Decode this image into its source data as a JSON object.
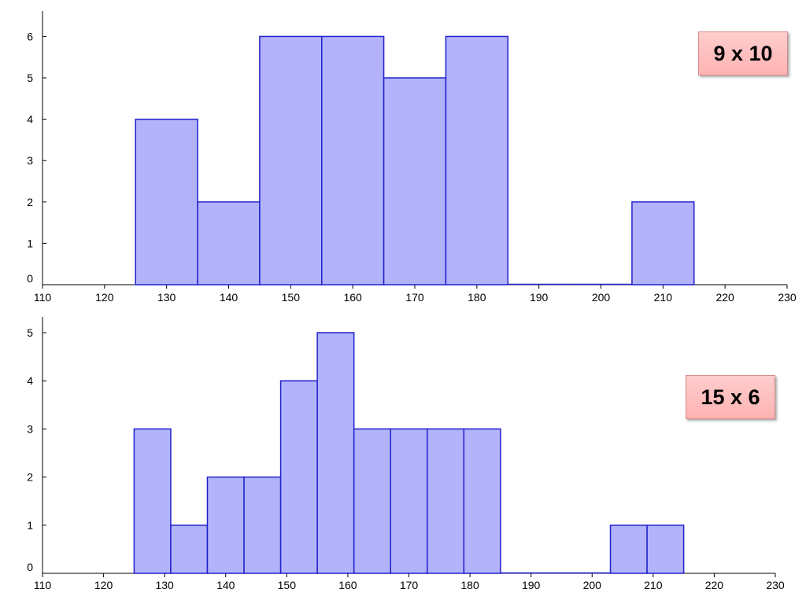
{
  "chart_data": [
    {
      "type": "bar",
      "histogram": true,
      "bin_width": 10,
      "x_ticks": [
        110,
        120,
        130,
        140,
        150,
        160,
        170,
        180,
        190,
        200,
        210,
        220,
        230
      ],
      "y_ticks": [
        0,
        1,
        2,
        3,
        4,
        5,
        6
      ],
      "xlim": [
        110,
        230
      ],
      "ylim": [
        0,
        6
      ],
      "bins": [
        {
          "start": 125,
          "end": 135,
          "count": 4
        },
        {
          "start": 135,
          "end": 145,
          "count": 2
        },
        {
          "start": 145,
          "end": 155,
          "count": 6
        },
        {
          "start": 155,
          "end": 165,
          "count": 6
        },
        {
          "start": 165,
          "end": 175,
          "count": 5
        },
        {
          "start": 175,
          "end": 185,
          "count": 6
        },
        {
          "start": 185,
          "end": 195,
          "count": 0
        },
        {
          "start": 195,
          "end": 205,
          "count": 0
        },
        {
          "start": 205,
          "end": 215,
          "count": 2
        }
      ],
      "label": "9 x 10",
      "colors": {
        "fill": "#b3b3fb",
        "stroke": "#2020cc"
      }
    },
    {
      "type": "bar",
      "histogram": true,
      "bin_width": 6,
      "x_ticks": [
        110,
        120,
        130,
        140,
        150,
        160,
        170,
        180,
        190,
        200,
        210,
        220,
        230
      ],
      "y_ticks": [
        0,
        1,
        2,
        3,
        4,
        5
      ],
      "xlim": [
        110,
        230
      ],
      "ylim": [
        0,
        5
      ],
      "bins": [
        {
          "start": 125,
          "end": 131,
          "count": 3
        },
        {
          "start": 131,
          "end": 137,
          "count": 1
        },
        {
          "start": 137,
          "end": 143,
          "count": 2
        },
        {
          "start": 143,
          "end": 149,
          "count": 2
        },
        {
          "start": 149,
          "end": 155,
          "count": 4
        },
        {
          "start": 155,
          "end": 161,
          "count": 5
        },
        {
          "start": 161,
          "end": 167,
          "count": 3
        },
        {
          "start": 167,
          "end": 173,
          "count": 3
        },
        {
          "start": 173,
          "end": 179,
          "count": 3
        },
        {
          "start": 179,
          "end": 185,
          "count": 3
        },
        {
          "start": 185,
          "end": 191,
          "count": 0
        },
        {
          "start": 191,
          "end": 197,
          "count": 0
        },
        {
          "start": 197,
          "end": 203,
          "count": 0
        },
        {
          "start": 203,
          "end": 209,
          "count": 1
        },
        {
          "start": 209,
          "end": 215,
          "count": 1
        }
      ],
      "label": "15 x 6",
      "colors": {
        "fill": "#b3b3fb",
        "stroke": "#2020cc"
      }
    }
  ]
}
